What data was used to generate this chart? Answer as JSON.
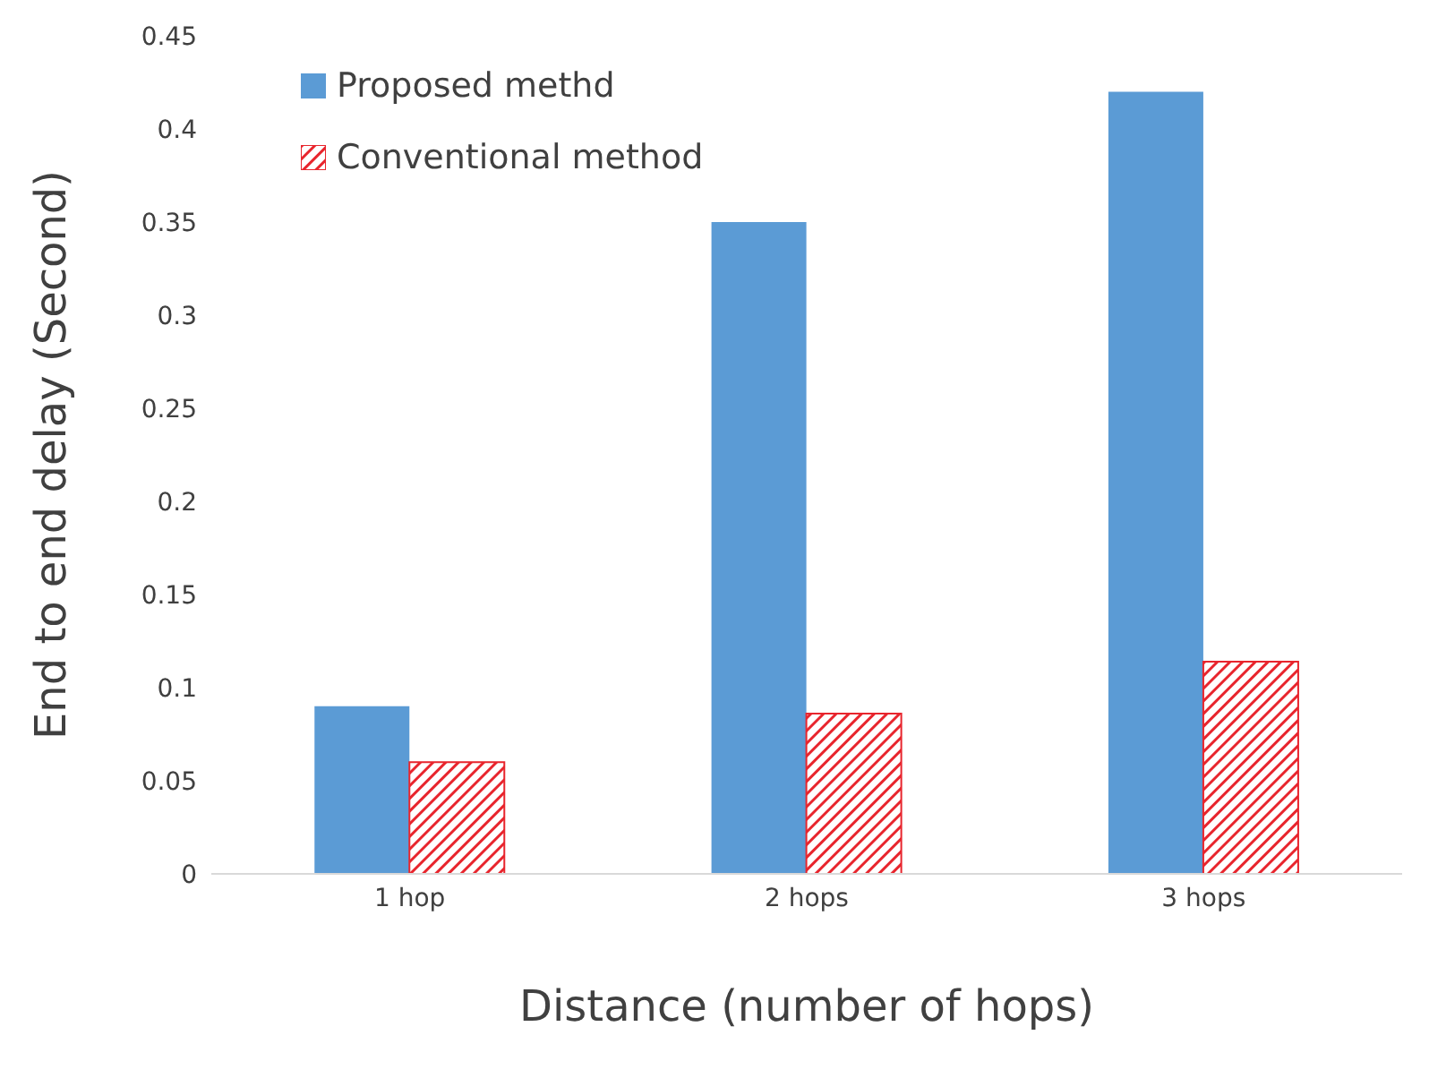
{
  "chart_data": {
    "type": "bar",
    "xlabel": "Distance (number of hops)",
    "ylabel": "End to end delay (Second)",
    "categories": [
      "1 hop",
      "2 hops",
      "3 hops"
    ],
    "series": [
      {
        "name": "Proposed methd",
        "color": "#5b9bd5",
        "values": [
          0.09,
          0.35,
          0.42
        ]
      },
      {
        "name": "Conventional method",
        "color": "#e8252d",
        "values": [
          0.06,
          0.086,
          0.114
        ]
      }
    ],
    "ylim": [
      0,
      0.45
    ],
    "yticks": [
      0,
      0.05,
      0.1,
      0.15,
      0.2,
      0.25,
      0.3,
      0.35,
      0.4,
      0.45
    ],
    "grid": false,
    "legend": "top left"
  }
}
